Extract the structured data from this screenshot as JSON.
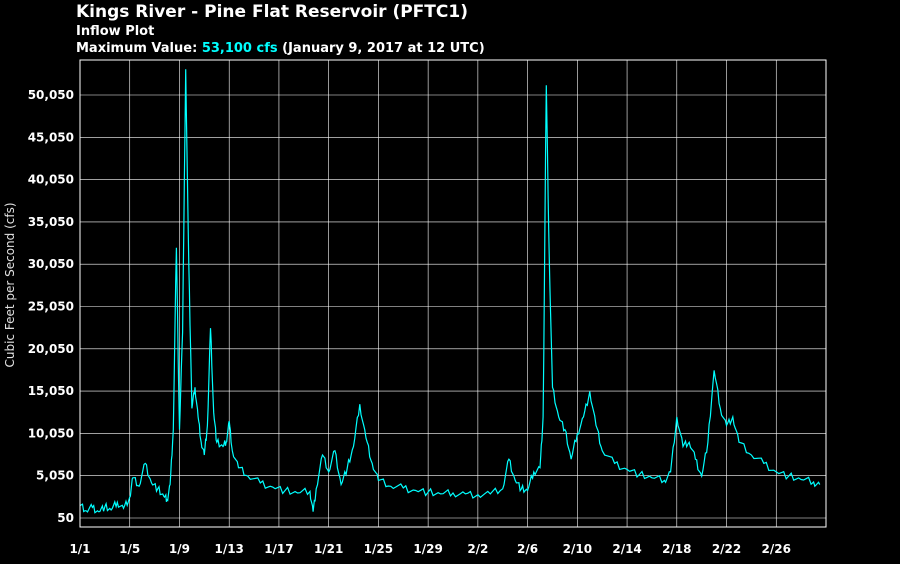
{
  "colors": {
    "background": "#000000",
    "line": "#00ffff",
    "grid": "#ffffff",
    "text": "#ffffff"
  },
  "chart_data": {
    "type": "line",
    "title": "Kings River - Pine Flat Reservoir (PFTC1)",
    "subtitle": "Inflow Plot",
    "max_label": "Maximum Value:",
    "max_value": "53,100 cfs",
    "max_when": "(January 9, 2017 at 12 UTC)",
    "xlabel": "",
    "ylabel": "Cubic Feet per Second (cfs)",
    "x_domain": [
      "2017-01-01",
      "2017-03-02"
    ],
    "ylim": [
      50,
      50050
    ],
    "x_ticks": [
      "1/1",
      "1/5",
      "1/9",
      "1/13",
      "1/17",
      "1/21",
      "1/25",
      "1/29",
      "2/2",
      "2/6",
      "2/10",
      "2/14",
      "2/18",
      "2/22",
      "2/26"
    ],
    "y_ticks": [
      "50",
      "5,050",
      "10,050",
      "15,050",
      "20,050",
      "25,050",
      "30,050",
      "35,050",
      "40,050",
      "45,050",
      "50,050"
    ],
    "grid": true,
    "series": [
      {
        "values": [
          [
            "2017-01-01T00",
            1500
          ],
          [
            "2017-01-01T12",
            900
          ],
          [
            "2017-01-02T00",
            1300
          ],
          [
            "2017-01-02T12",
            800
          ],
          [
            "2017-01-03T00",
            1400
          ],
          [
            "2017-01-03T12",
            1000
          ],
          [
            "2017-01-04T00",
            1900
          ],
          [
            "2017-01-04T12",
            1200
          ],
          [
            "2017-01-05T00",
            2500
          ],
          [
            "2017-01-05T06",
            4800
          ],
          [
            "2017-01-05T18",
            3800
          ],
          [
            "2017-01-06T06",
            6500
          ],
          [
            "2017-01-06T18",
            4200
          ],
          [
            "2017-01-07T06",
            3500
          ],
          [
            "2017-01-07T18",
            2600
          ],
          [
            "2017-01-08T00",
            2200
          ],
          [
            "2017-01-08T06",
            4000
          ],
          [
            "2017-01-08T12",
            10500
          ],
          [
            "2017-01-08T18",
            32000
          ],
          [
            "2017-01-09T00",
            10500
          ],
          [
            "2017-01-09T06",
            22000
          ],
          [
            "2017-01-09T12",
            53100
          ],
          [
            "2017-01-09T18",
            30000
          ],
          [
            "2017-01-10T00",
            13000
          ],
          [
            "2017-01-10T06",
            15500
          ],
          [
            "2017-01-10T12",
            12000
          ],
          [
            "2017-01-10T18",
            9000
          ],
          [
            "2017-01-11T00",
            7500
          ],
          [
            "2017-01-11T06",
            11000
          ],
          [
            "2017-01-11T12",
            22500
          ],
          [
            "2017-01-11T18",
            12500
          ],
          [
            "2017-01-12T00",
            9000
          ],
          [
            "2017-01-12T12",
            8500
          ],
          [
            "2017-01-12T18",
            9000
          ],
          [
            "2017-01-13T00",
            11500
          ],
          [
            "2017-01-13T06",
            8000
          ],
          [
            "2017-01-13T18",
            6000
          ],
          [
            "2017-01-14T12",
            5000
          ],
          [
            "2017-01-15T12",
            4200
          ],
          [
            "2017-01-16T12",
            3700
          ],
          [
            "2017-01-17T12",
            3300
          ],
          [
            "2017-01-18T12",
            3000
          ],
          [
            "2017-01-19T12",
            3200
          ],
          [
            "2017-01-19T18",
            800
          ],
          [
            "2017-01-20T00",
            3500
          ],
          [
            "2017-01-20T12",
            7500
          ],
          [
            "2017-01-21T00",
            5500
          ],
          [
            "2017-01-21T12",
            8000
          ],
          [
            "2017-01-22T00",
            4000
          ],
          [
            "2017-01-22T12",
            6000
          ],
          [
            "2017-01-23T00",
            8500
          ],
          [
            "2017-01-23T12",
            13500
          ],
          [
            "2017-01-24T00",
            9500
          ],
          [
            "2017-01-24T12",
            6500
          ],
          [
            "2017-01-25T00",
            4500
          ],
          [
            "2017-01-26T00",
            3800
          ],
          [
            "2017-01-27T00",
            3600
          ],
          [
            "2017-01-28T00",
            3300
          ],
          [
            "2017-01-29T00",
            3100
          ],
          [
            "2017-01-30T00",
            2900
          ],
          [
            "2017-01-31T00",
            3000
          ],
          [
            "2017-02-01T00",
            2900
          ],
          [
            "2017-02-02T00",
            2800
          ],
          [
            "2017-02-03T00",
            2900
          ],
          [
            "2017-02-04T00",
            3500
          ],
          [
            "2017-02-04T12",
            7000
          ],
          [
            "2017-02-05T00",
            4500
          ],
          [
            "2017-02-05T12",
            3500
          ],
          [
            "2017-02-06T00",
            3300
          ],
          [
            "2017-02-06T12",
            5500
          ],
          [
            "2017-02-07T00",
            6000
          ],
          [
            "2017-02-07T06",
            12000
          ],
          [
            "2017-02-07T12",
            51200
          ],
          [
            "2017-02-07T18",
            30000
          ],
          [
            "2017-02-08T00",
            15500
          ],
          [
            "2017-02-08T12",
            12000
          ],
          [
            "2017-02-09T00",
            10500
          ],
          [
            "2017-02-09T12",
            7000
          ],
          [
            "2017-02-10T00",
            10000
          ],
          [
            "2017-02-10T12",
            12000
          ],
          [
            "2017-02-11T00",
            15000
          ],
          [
            "2017-02-11T12",
            11000
          ],
          [
            "2017-02-12T00",
            8000
          ],
          [
            "2017-02-13T00",
            6500
          ],
          [
            "2017-02-14T00",
            5800
          ],
          [
            "2017-02-15T00",
            5200
          ],
          [
            "2017-02-16T00",
            4800
          ],
          [
            "2017-02-17T00",
            4500
          ],
          [
            "2017-02-17T12",
            5500
          ],
          [
            "2017-02-18T00",
            12000
          ],
          [
            "2017-02-18T12",
            8500
          ],
          [
            "2017-02-19T00",
            9000
          ],
          [
            "2017-02-19T12",
            7000
          ],
          [
            "2017-02-20T00",
            5000
          ],
          [
            "2017-02-20T12",
            9000
          ],
          [
            "2017-02-21T00",
            17500
          ],
          [
            "2017-02-21T12",
            13000
          ],
          [
            "2017-02-22T00",
            11000
          ],
          [
            "2017-02-22T12",
            12000
          ],
          [
            "2017-02-23T00",
            9000
          ],
          [
            "2017-02-24T00",
            7500
          ],
          [
            "2017-02-25T00",
            6500
          ],
          [
            "2017-02-26T00",
            5500
          ],
          [
            "2017-02-27T00",
            5000
          ],
          [
            "2017-02-28T00",
            4600
          ],
          [
            "2017-03-01T00",
            4300
          ],
          [
            "2017-03-01T12",
            4000
          ]
        ]
      }
    ]
  }
}
